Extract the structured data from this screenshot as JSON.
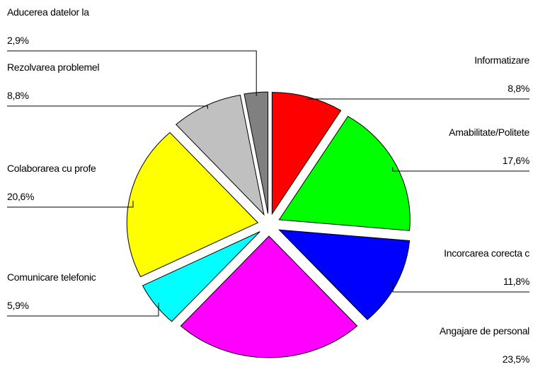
{
  "chart_data": {
    "type": "pie",
    "categories": [
      "Informatizare",
      "Amabilitate/Politete",
      "Incorcarea corecta c",
      "Angajare de personal",
      "Comunicare telefonic",
      "Colaborarea cu profe",
      "Rezolvarea problemel",
      "Aducerea datelor la"
    ],
    "values": [
      8.8,
      17.6,
      11.8,
      23.5,
      5.9,
      20.6,
      8.8,
      2.9
    ],
    "value_labels": [
      "8,8%",
      "17,6%",
      "11,8%",
      "23,5%",
      "5,9%",
      "20,6%",
      "8,8%",
      "2,9%"
    ],
    "colors": [
      "#ff0000",
      "#00ff00",
      "#0000ff",
      "#ff00ff",
      "#00ffff",
      "#ffff00",
      "#c0c0c0",
      "#808080"
    ]
  }
}
